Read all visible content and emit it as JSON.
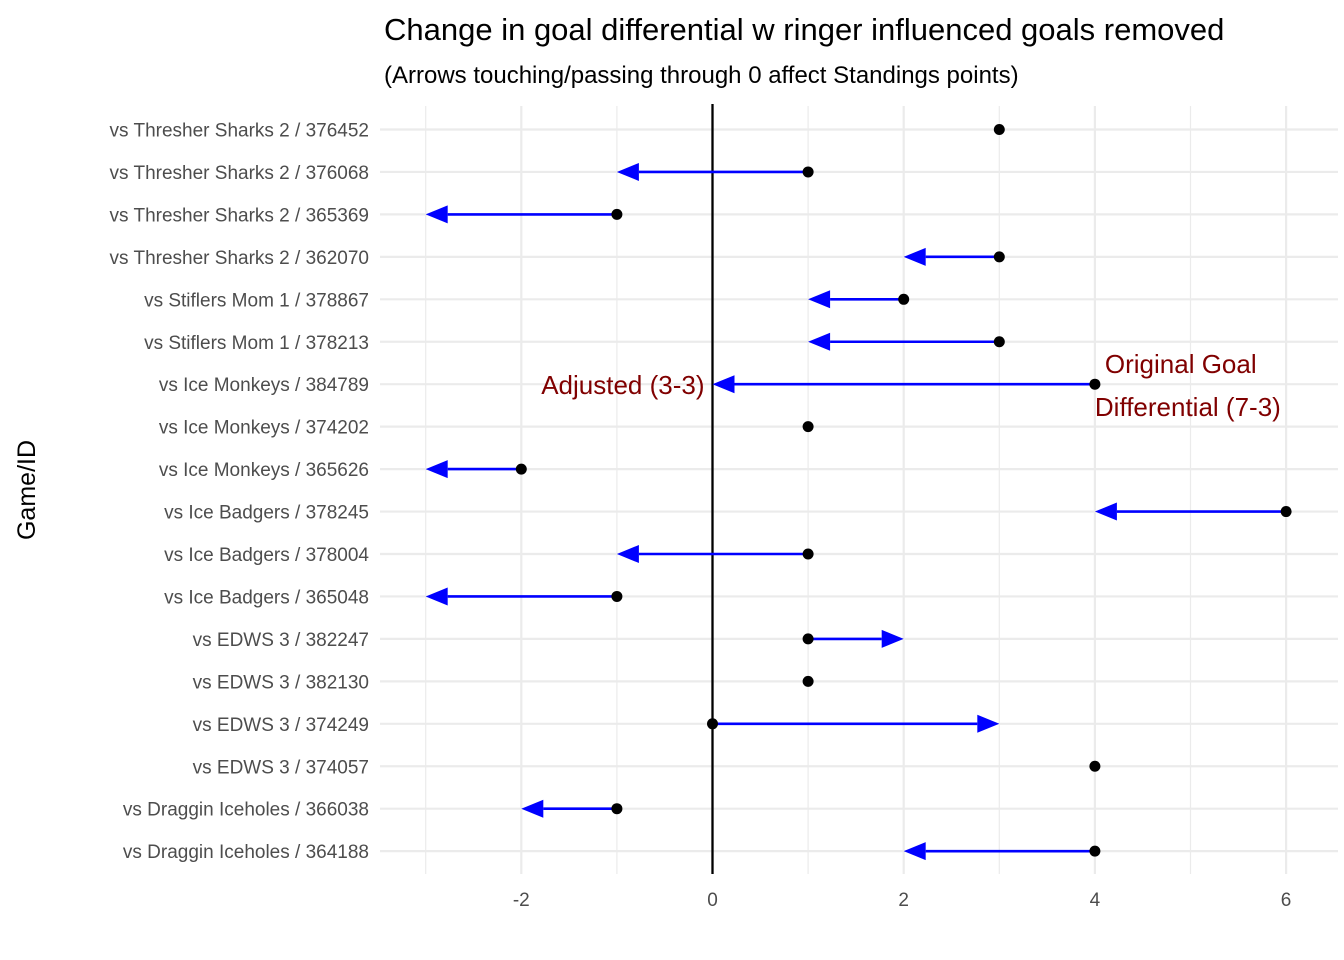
{
  "chart_data": {
    "type": "arrow-dot",
    "title": "Change in goal differential w ringer influenced goals  removed",
    "subtitle": "(Arrows touching/passing through 0 affect Standings points)",
    "ylabel": "Game/ID",
    "xlabel": "",
    "xlim": [
      -3.5,
      6.4
    ],
    "xticks": [
      -2,
      0,
      2,
      4,
      6
    ],
    "reference_line_x": 0,
    "grid": true,
    "rows": [
      {
        "label": "vs Thresher Sharks 2 / 376452",
        "original": 3,
        "adjusted": 3
      },
      {
        "label": "vs Thresher Sharks 2 / 376068",
        "original": 1,
        "adjusted": -1
      },
      {
        "label": "vs Thresher Sharks 2 / 365369",
        "original": -1,
        "adjusted": -3
      },
      {
        "label": "vs Thresher Sharks 2 / 362070",
        "original": 3,
        "adjusted": 2
      },
      {
        "label": "vs Stiflers Mom 1 / 378867",
        "original": 2,
        "adjusted": 1
      },
      {
        "label": "vs Stiflers Mom 1 / 378213",
        "original": 3,
        "adjusted": 1
      },
      {
        "label": "vs Ice Monkeys / 384789",
        "original": 4,
        "adjusted": 0
      },
      {
        "label": "vs Ice Monkeys / 374202",
        "original": 1,
        "adjusted": 1
      },
      {
        "label": "vs Ice Monkeys / 365626",
        "original": -2,
        "adjusted": -3
      },
      {
        "label": "vs Ice Badgers / 378245",
        "original": 6,
        "adjusted": 4
      },
      {
        "label": "vs Ice Badgers / 378004",
        "original": 1,
        "adjusted": -1
      },
      {
        "label": "vs Ice Badgers / 365048",
        "original": -1,
        "adjusted": -3
      },
      {
        "label": "vs EDWS 3 / 382247",
        "original": 1,
        "adjusted": 2
      },
      {
        "label": "vs EDWS 3 / 382130",
        "original": 1,
        "adjusted": 1
      },
      {
        "label": "vs EDWS 3 / 374249",
        "original": 0,
        "adjusted": 3
      },
      {
        "label": "vs EDWS 3 / 374057",
        "original": 4,
        "adjusted": 4
      },
      {
        "label": "vs Draggin Iceholes / 366038",
        "original": -1,
        "adjusted": -2
      },
      {
        "label": "vs Draggin Iceholes / 364188",
        "original": 4,
        "adjusted": 2
      }
    ],
    "annotations": {
      "adjusted": {
        "text": "Adjusted (3-3)",
        "row": "vs Ice Monkeys / 384789",
        "x": 0
      },
      "original_line1": "Original Goal",
      "original_line2": "Differential (7-3)",
      "original_x": 4
    },
    "colors": {
      "arrow": "#0000ff",
      "point": "#000000",
      "grid": "#ebebeb",
      "reference_line": "#000000",
      "annotation": "#800000"
    }
  }
}
